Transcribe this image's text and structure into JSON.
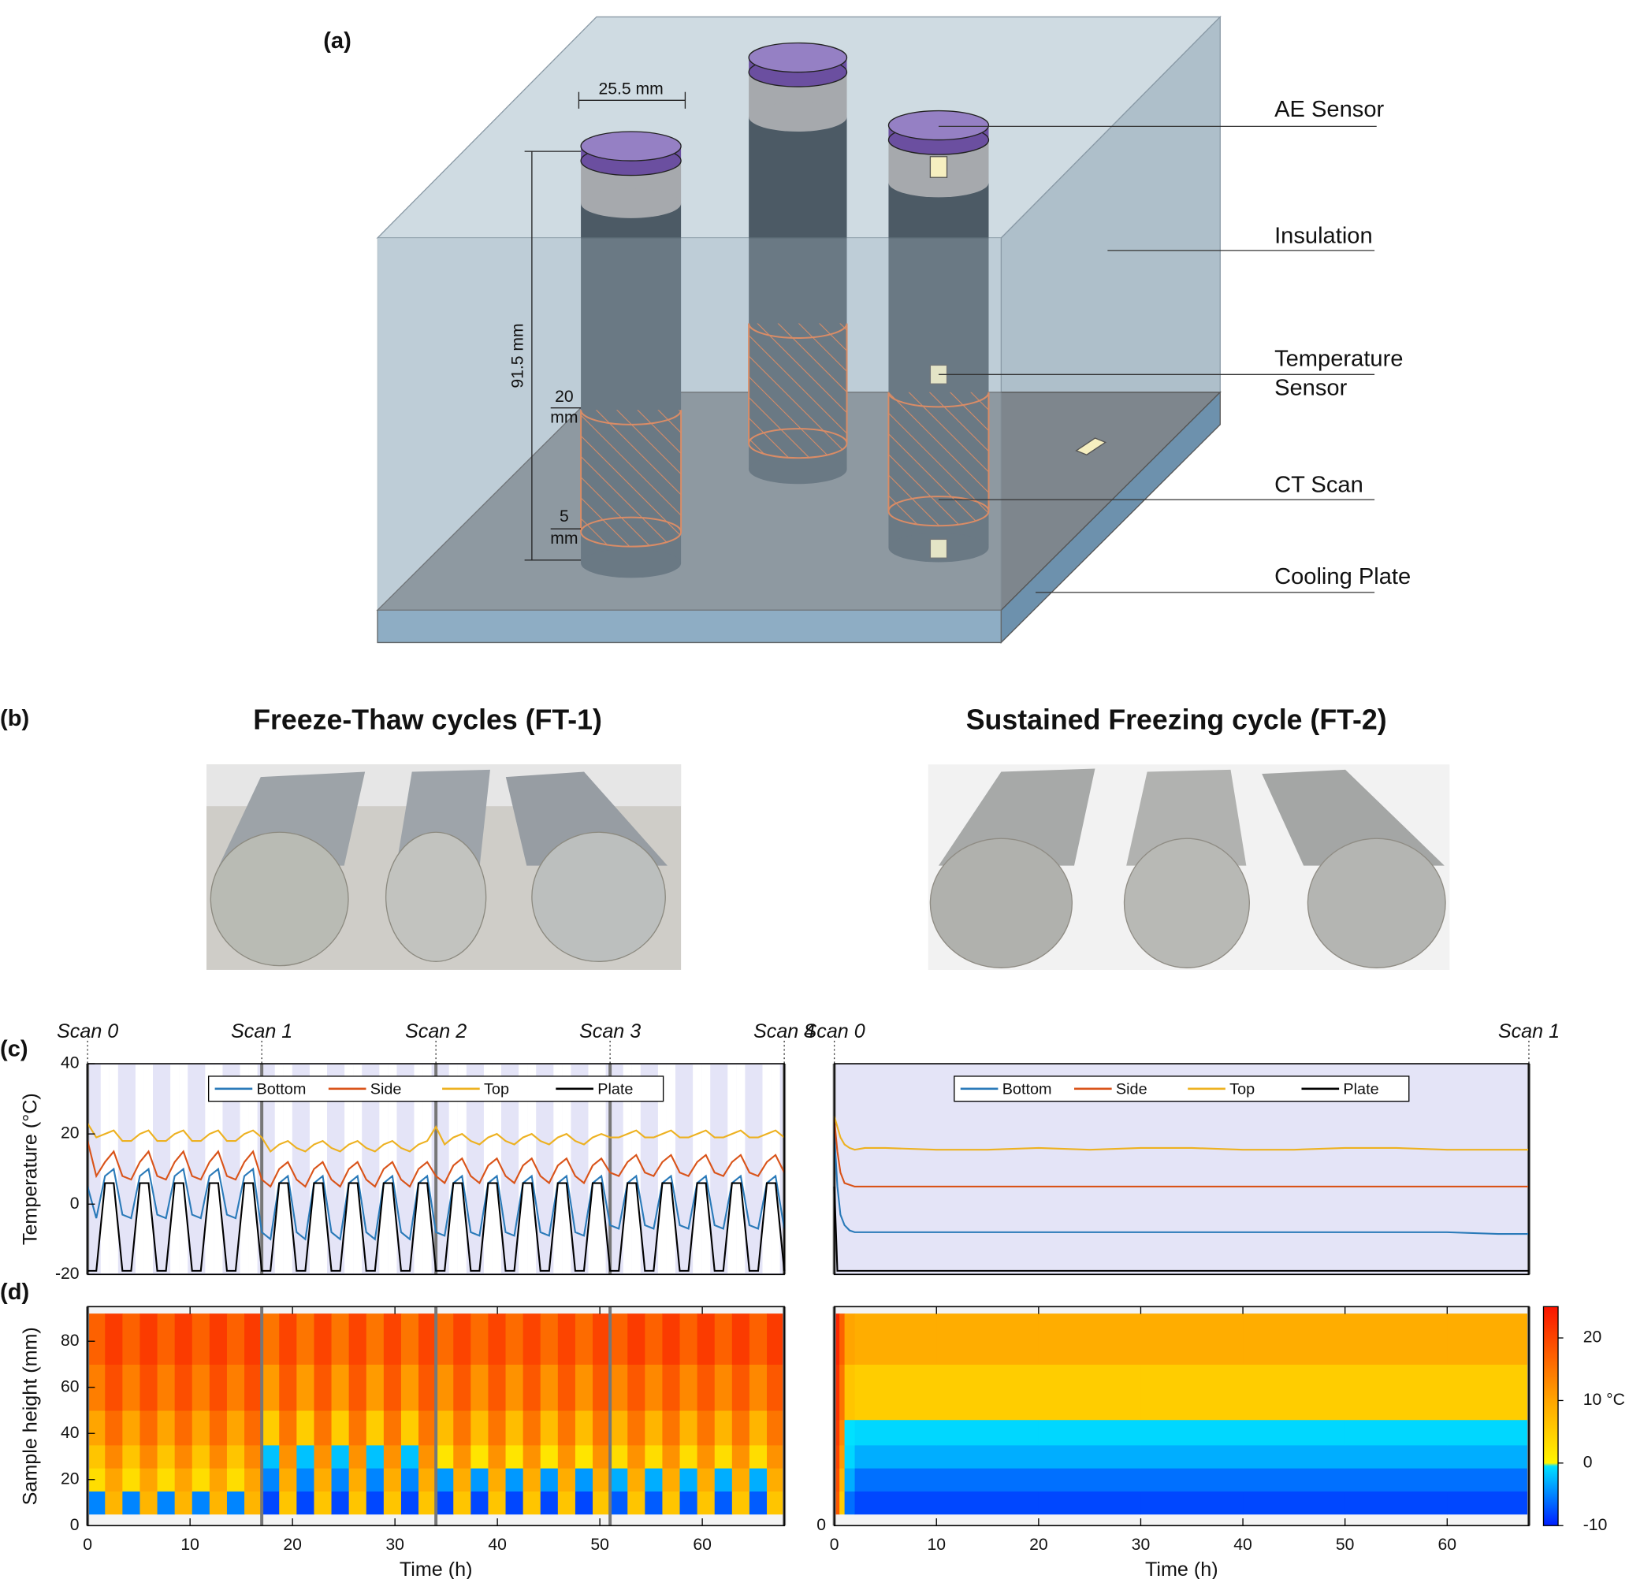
{
  "diagram": {
    "panel": "(a)",
    "width_label": "25.5 mm",
    "height_label": "91.5 mm",
    "ct_top": {
      "value": "20",
      "unit": "mm"
    },
    "ct_bottom": {
      "value": "5",
      "unit": "mm"
    },
    "labels": {
      "ae_sensor": "AE Sensor",
      "insulation": "Insulation",
      "temperature_sensor": [
        "Temperature",
        "Sensor"
      ],
      "ct_scan": "CT Scan",
      "cooling_plate": "Cooling Plate"
    }
  },
  "photos": {
    "panel": "(b)",
    "titles": [
      "Freeze-Thaw cycles (FT-1)",
      "Sustained Freezing cycle (FT-2)"
    ]
  },
  "chart_data": [
    {
      "type": "line",
      "panel": "(c)",
      "ylabel": "Temperature (°C)",
      "x": [
        0,
        0.85,
        1.7,
        2.55,
        3.4,
        4.25,
        5.1,
        5.95,
        6.8,
        7.65,
        8.5,
        9.35,
        10.2,
        11.05,
        11.9,
        12.75,
        13.6,
        14.45,
        15.3,
        16.15,
        17,
        17.85,
        18.7,
        19.55,
        20.4,
        21.25,
        22.1,
        22.95,
        23.8,
        24.65,
        25.5,
        26.35,
        27.2,
        28.05,
        28.9,
        29.75,
        30.6,
        31.45,
        32.3,
        33.15,
        34,
        34.85,
        35.7,
        36.55,
        37.4,
        38.25,
        39.1,
        39.95,
        40.8,
        41.65,
        42.5,
        43.35,
        44.2,
        45.05,
        45.9,
        46.75,
        47.6,
        48.45,
        49.3,
        50.15,
        51,
        51.85,
        52.7,
        53.55,
        54.4,
        55.25,
        56.1,
        56.95,
        57.8,
        58.65,
        59.5,
        60.35,
        61.2,
        62.05,
        62.9,
        63.75,
        64.6,
        65.45,
        66.3,
        67.15,
        68
      ],
      "series": [
        {
          "name": "Bottom",
          "color": "#2a7ab9",
          "values": [
            5,
            -4,
            8,
            10,
            -3,
            -4,
            8,
            10,
            -3,
            -4,
            8,
            10,
            -3,
            -4,
            8,
            10,
            -3,
            -4,
            8,
            10,
            -8,
            -10,
            6,
            8,
            -8,
            -10,
            6,
            8,
            -8,
            -10,
            6,
            8,
            -8,
            -10,
            6,
            8,
            -8,
            -10,
            6,
            8,
            -8,
            -9,
            6,
            8,
            -8,
            -9,
            6,
            8,
            -8,
            -9,
            6,
            8,
            -8,
            -9,
            6,
            8,
            -8,
            -9,
            6,
            8,
            -6,
            -7,
            6,
            8,
            -6,
            -7,
            6,
            8,
            -6,
            -7,
            6,
            8,
            -6,
            -7,
            6,
            8,
            -6,
            -7,
            6,
            8,
            -7
          ]
        },
        {
          "name": "Side",
          "color": "#d95319",
          "values": [
            18,
            8,
            12,
            15,
            8,
            7,
            12,
            15,
            8,
            7,
            12,
            15,
            8,
            7,
            12,
            15,
            8,
            7,
            12,
            15,
            7,
            5,
            10,
            12,
            7,
            5,
            10,
            12,
            7,
            5,
            10,
            12,
            7,
            5,
            10,
            12,
            7,
            5,
            10,
            12,
            8,
            6,
            11,
            13,
            8,
            6,
            11,
            13,
            8,
            6,
            11,
            13,
            8,
            6,
            11,
            13,
            8,
            6,
            11,
            13,
            9,
            8,
            12,
            14,
            9,
            8,
            12,
            14,
            9,
            8,
            12,
            14,
            9,
            8,
            12,
            14,
            9,
            8,
            12,
            14,
            9
          ]
        },
        {
          "name": "Top",
          "color": "#edb120",
          "values": [
            23,
            19,
            20,
            21,
            18,
            18,
            20,
            21,
            18,
            18,
            20,
            21,
            18,
            18,
            20,
            21,
            18,
            18,
            20,
            21,
            19,
            15,
            17,
            18,
            16,
            15,
            17,
            18,
            16,
            15,
            17,
            18,
            16,
            15,
            17,
            18,
            16,
            15,
            17,
            18,
            22,
            17,
            19,
            20,
            18,
            17,
            19,
            20,
            18,
            17,
            19,
            20,
            18,
            17,
            19,
            20,
            18,
            17,
            19,
            20,
            19,
            19,
            20,
            21,
            19,
            19,
            20,
            21,
            19,
            19,
            20,
            21,
            19,
            19,
            20,
            21,
            19,
            19,
            20,
            21,
            19
          ]
        },
        {
          "name": "Plate",
          "color": "#000000",
          "values": [
            -19,
            -19,
            6,
            6,
            -19,
            -19,
            6,
            6,
            -19,
            -19,
            6,
            6,
            -19,
            -19,
            6,
            6,
            -19,
            -19,
            6,
            6,
            -19,
            -19,
            6,
            6,
            -19,
            -19,
            6,
            6,
            -19,
            -19,
            6,
            6,
            -19,
            -19,
            6,
            6,
            -19,
            -19,
            6,
            6,
            -19,
            -19,
            6,
            6,
            -19,
            -19,
            6,
            6,
            -19,
            -19,
            6,
            6,
            -19,
            -19,
            6,
            6,
            -19,
            -19,
            6,
            6,
            -19,
            -19,
            6,
            6,
            -19,
            -19,
            6,
            6,
            -19,
            -19,
            6,
            6,
            -19,
            -19,
            6,
            6,
            -19,
            -19,
            6,
            6,
            -19
          ]
        }
      ],
      "xlim": [
        0,
        68
      ],
      "ylim": [
        -20,
        40
      ],
      "yticks": [
        -20,
        0,
        20,
        40
      ],
      "annotations": [
        {
          "x": 0,
          "label": "Scan 0"
        },
        {
          "x": 17,
          "label": "Scan 1"
        },
        {
          "x": 34,
          "label": "Scan 2"
        },
        {
          "x": 51,
          "label": "Scan 3"
        },
        {
          "x": 68,
          "label": "Scan 4"
        }
      ]
    },
    {
      "type": "line",
      "x": [
        0,
        0.3,
        0.6,
        1,
        1.5,
        2,
        3,
        5,
        10,
        15,
        20,
        25,
        30,
        35,
        40,
        45,
        50,
        55,
        60,
        65,
        68
      ],
      "series": [
        {
          "name": "Bottom",
          "color": "#2a7ab9",
          "values": [
            20,
            5,
            -3,
            -6,
            -7.5,
            -8,
            -8,
            -8,
            -8,
            -8,
            -8,
            -8,
            -8,
            -8,
            -8,
            -8,
            -8,
            -8,
            -8,
            -8.5,
            -8.5
          ]
        },
        {
          "name": "Side",
          "color": "#d95319",
          "values": [
            24,
            15,
            9,
            6,
            5.5,
            5,
            5,
            5,
            5,
            5,
            5,
            5,
            5,
            5,
            5,
            5,
            5,
            5,
            5,
            5,
            5
          ]
        },
        {
          "name": "Top",
          "color": "#edb120",
          "values": [
            25,
            22,
            19,
            17,
            16,
            15.5,
            16,
            16,
            15.5,
            15.5,
            16,
            15.5,
            16,
            16,
            15.5,
            15.5,
            16,
            16,
            15.5,
            15.5,
            15.5
          ]
        },
        {
          "name": "Plate",
          "color": "#000000",
          "values": [
            5,
            -19,
            -19,
            -19,
            -19,
            -19,
            -19,
            -19,
            -19,
            -19,
            -19,
            -19,
            -19,
            -19,
            -19,
            -19,
            -19,
            -19,
            -19,
            -19,
            -19
          ]
        }
      ],
      "xlim": [
        0,
        68
      ],
      "ylim": [
        -20,
        40
      ],
      "annotations": [
        {
          "x": 0,
          "label": "Scan 0"
        },
        {
          "x": 68,
          "label": "Scan 1"
        }
      ]
    },
    {
      "type": "heatmap",
      "panel": "(d)",
      "xlabel": "Time (h)",
      "ylabel": "Sample height (mm)",
      "x_edges": [
        0,
        1.7,
        3.4,
        5.1,
        6.8,
        8.5,
        10.2,
        11.9,
        13.6,
        15.3,
        17,
        18.7,
        20.4,
        22.1,
        23.8,
        25.5,
        27.2,
        28.9,
        30.6,
        32.3,
        34,
        35.7,
        37.4,
        39.1,
        40.8,
        42.5,
        44.2,
        45.9,
        47.6,
        49.3,
        51,
        52.7,
        54.4,
        56.1,
        57.8,
        59.5,
        61.2,
        62.9,
        64.6,
        66.3,
        68
      ],
      "y_edges": [
        5,
        15,
        25,
        35,
        50,
        70,
        92
      ],
      "z": [
        [
          -5,
          8,
          -5,
          8,
          -5,
          8,
          -5,
          8,
          -5,
          8,
          -8,
          6,
          -8,
          6,
          -8,
          6,
          -8,
          6,
          -8,
          6,
          -8,
          6,
          -8,
          6,
          -8,
          6,
          -8,
          6,
          -8,
          6,
          -7,
          6,
          -7,
          6,
          -7,
          6,
          -7,
          6,
          -7,
          6
        ],
        [
          3,
          10,
          3,
          10,
          3,
          10,
          3,
          10,
          3,
          10,
          -5,
          9,
          -5,
          9,
          -5,
          9,
          -5,
          9,
          -5,
          9,
          -4,
          9,
          -4,
          9,
          -4,
          9,
          -4,
          9,
          -4,
          9,
          -3,
          9,
          -3,
          9,
          -3,
          9,
          -3,
          9,
          -3,
          9
        ],
        [
          6,
          13,
          6,
          13,
          6,
          13,
          6,
          13,
          6,
          13,
          -2,
          12,
          -2,
          12,
          -2,
          12,
          -2,
          12,
          -2,
          12,
          2,
          12,
          2,
          12,
          2,
          12,
          2,
          12,
          2,
          12,
          3,
          12,
          3,
          12,
          3,
          12,
          3,
          12,
          3,
          12
        ],
        [
          10,
          16,
          10,
          16,
          10,
          16,
          10,
          16,
          10,
          16,
          5,
          15,
          5,
          15,
          5,
          15,
          5,
          15,
          5,
          15,
          7,
          15,
          7,
          15,
          7,
          15,
          7,
          15,
          7,
          15,
          8,
          15,
          8,
          15,
          8,
          15,
          8,
          15,
          8,
          15
        ],
        [
          14,
          19,
          14,
          19,
          14,
          19,
          14,
          19,
          14,
          19,
          11,
          18,
          11,
          18,
          11,
          18,
          11,
          18,
          11,
          18,
          12,
          18,
          12,
          18,
          12,
          18,
          12,
          18,
          12,
          18,
          13,
          18,
          13,
          18,
          13,
          18,
          13,
          18,
          13,
          18
        ],
        [
          17,
          21,
          17,
          21,
          17,
          21,
          17,
          21,
          17,
          21,
          15,
          20,
          15,
          20,
          15,
          20,
          15,
          20,
          15,
          20,
          16,
          20,
          16,
          20,
          16,
          20,
          16,
          20,
          16,
          20,
          17,
          21,
          17,
          21,
          17,
          21,
          17,
          21,
          17,
          21
        ]
      ],
      "xlim": [
        0,
        68
      ],
      "ylim": [
        0,
        95
      ],
      "xticks": [
        0,
        10,
        20,
        30,
        40,
        50,
        60
      ],
      "yticks": [
        0,
        20,
        40,
        60,
        80
      ],
      "vlines": [
        0,
        17,
        34,
        51,
        68
      ]
    },
    {
      "type": "heatmap",
      "xlabel": "Time (h)",
      "x_edges": [
        0,
        0.5,
        1,
        2,
        10,
        20,
        30,
        40,
        50,
        60,
        68
      ],
      "y_edges": [
        5,
        15,
        25,
        35,
        46,
        70,
        92
      ],
      "z": [
        [
          18,
          5,
          -6,
          -8,
          -8,
          -8,
          -8,
          -8,
          -8,
          -8
        ],
        [
          19,
          8,
          -3,
          -6,
          -6,
          -6,
          -6,
          -6,
          -6,
          -6
        ],
        [
          20,
          11,
          -1,
          -3,
          -3,
          -3,
          -3,
          -3,
          -3,
          -3
        ],
        [
          21,
          13,
          -0.5,
          -1,
          -1,
          -1,
          -1,
          -1,
          -1,
          -1
        ],
        [
          22,
          15,
          6,
          5,
          5,
          5,
          5,
          5,
          5,
          5
        ],
        [
          23,
          17,
          10,
          9,
          9,
          9,
          9,
          9,
          9,
          9
        ]
      ],
      "xlim": [
        0,
        68
      ],
      "ylim": [
        0,
        95
      ],
      "xticks": [
        0,
        10,
        20,
        30,
        40,
        50,
        60
      ],
      "yticks": [
        0
      ],
      "vlines": [
        0,
        68
      ],
      "colorbar": {
        "lim": [
          -10,
          25
        ],
        "ticks": [
          -10,
          0,
          {
            "value": 10,
            "label": "10 °C"
          },
          20
        ]
      }
    }
  ]
}
